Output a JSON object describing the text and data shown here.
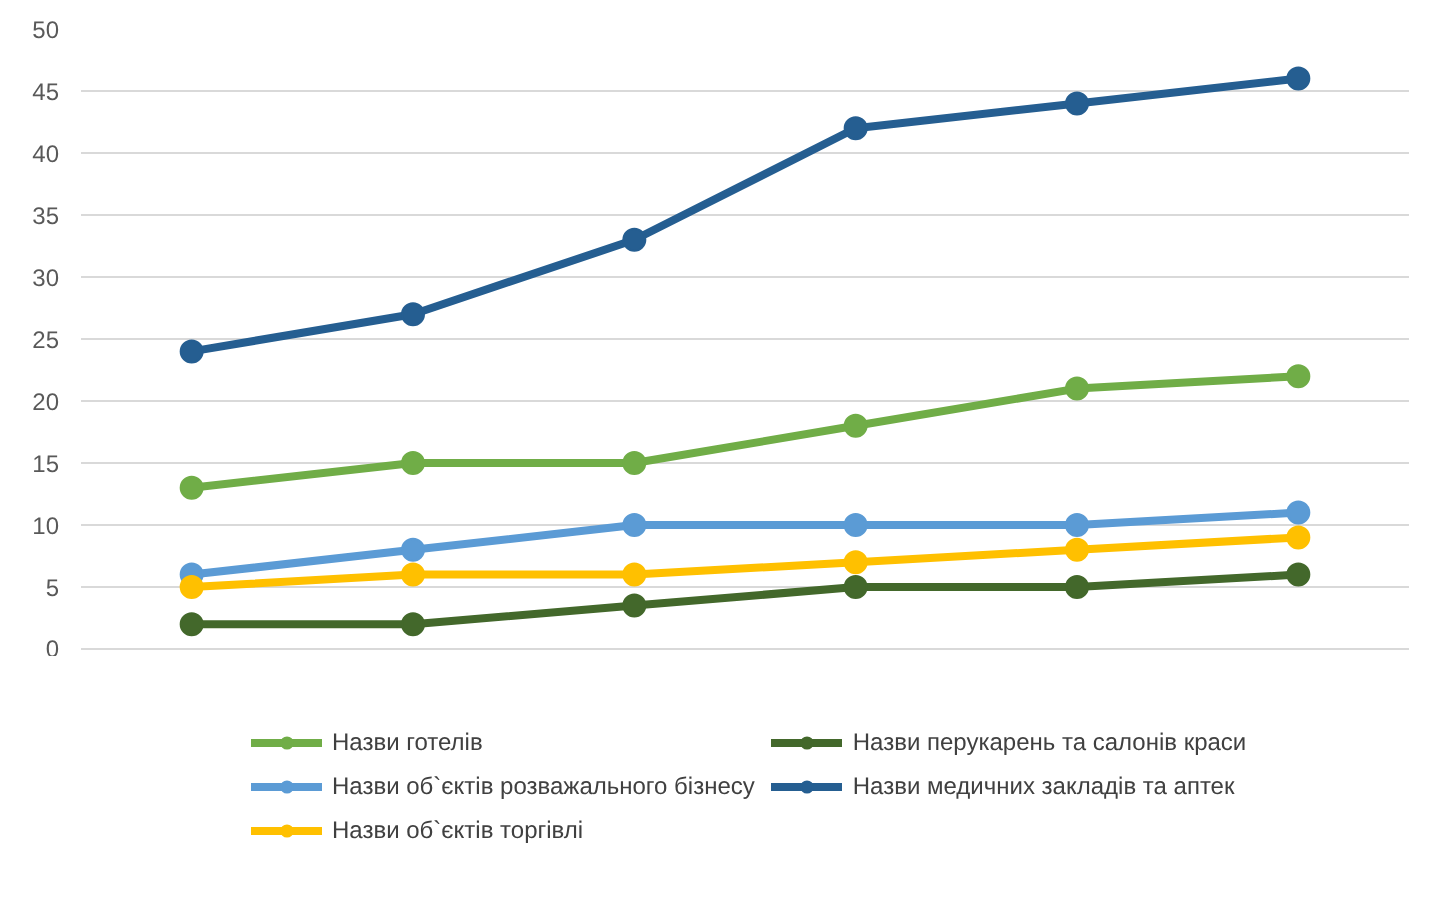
{
  "chart_data": {
    "type": "line",
    "categories": [
      null,
      null,
      null,
      null,
      null,
      null
    ],
    "ylim": [
      0,
      50
    ],
    "yticks": [
      0,
      5,
      10,
      15,
      20,
      25,
      30,
      35,
      40,
      45,
      50
    ],
    "grid": "y",
    "legend": "bottom",
    "marker": "circle",
    "line_style": "solid",
    "tick_labels": "y",
    "series": [
      {
        "name": "Назви готелів",
        "color": "#70ad47",
        "values": [
          13,
          15,
          15,
          18,
          21,
          22
        ]
      },
      {
        "name": "Назви об`єктів розважального бізнесу",
        "color": "#5b9bd5",
        "values": [
          6,
          8,
          10,
          10,
          10,
          11
        ]
      },
      {
        "name": "Назви об`єктів торгівлі",
        "color": "#ffc000",
        "values": [
          5,
          6,
          6,
          7,
          8,
          9
        ]
      },
      {
        "name": "Назви перукарень та салонів краси",
        "color": "#43682b",
        "values": [
          2,
          2,
          3.5,
          5,
          5,
          6
        ]
      },
      {
        "name": "Назви медичних закладів та аптек",
        "color": "#255e91",
        "values": [
          24,
          27,
          33,
          42,
          44,
          46
        ]
      }
    ]
  }
}
